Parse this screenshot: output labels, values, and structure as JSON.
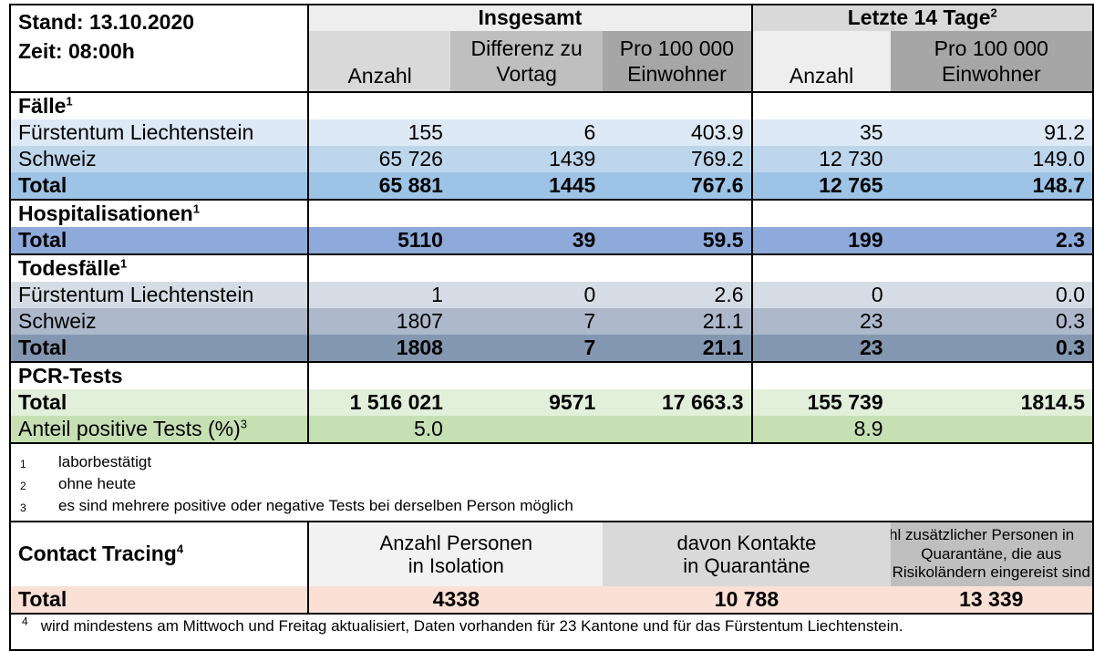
{
  "header": {
    "stand": "Stand: 13.10.2020",
    "zeit": "Zeit: 08:00h",
    "group_total": "Insgesamt",
    "group_14": "Letzte 14 Tage",
    "group_14_sup": "2",
    "cols": [
      "Anzahl",
      "Differenz zu Vortag",
      "Pro 100 000 Einwohner",
      "Anzahl",
      "Pro 100 000 Einwohner"
    ],
    "col_lines": {
      "c2a": "Differenz zu",
      "c2b": "Vortag",
      "c3a": "Pro 100 000",
      "c3b": "Einwohner",
      "c5a": "Pro 100 000",
      "c5b": "Einwohner"
    }
  },
  "sections": {
    "faelle": {
      "title": "Fälle",
      "sup": "1",
      "rows": [
        {
          "label": "Fürstentum Liechtenstein",
          "values": [
            "155",
            "6",
            "403.9",
            "35",
            "91.2"
          ]
        },
        {
          "label": "Schweiz",
          "values": [
            "65 726",
            "1439",
            "769.2",
            "12 730",
            "149.0"
          ]
        },
        {
          "label": "Total",
          "values": [
            "65 881",
            "1445",
            "767.6",
            "12 765",
            "148.7"
          ]
        }
      ]
    },
    "hosp": {
      "title": "Hospitalisationen",
      "sup": "1",
      "rows": [
        {
          "label": "Total",
          "values": [
            "5110",
            "39",
            "59.5",
            "199",
            "2.3"
          ]
        }
      ]
    },
    "tod": {
      "title": "Todesfälle",
      "sup": "1",
      "rows": [
        {
          "label": "Fürstentum Liechtenstein",
          "values": [
            "1",
            "0",
            "2.6",
            "0",
            "0.0"
          ]
        },
        {
          "label": "Schweiz",
          "values": [
            "1807",
            "7",
            "21.1",
            "23",
            "0.3"
          ]
        },
        {
          "label": "Total",
          "values": [
            "1808",
            "7",
            "21.1",
            "23",
            "0.3"
          ]
        }
      ]
    },
    "pcr": {
      "title": "PCR-Tests",
      "total": {
        "label": "Total",
        "values": [
          "1 516 021",
          "9571",
          "17 663.3",
          "155 739",
          "1814.5"
        ]
      },
      "anteil": {
        "label": "Anteil positive Tests (%)",
        "sup": "3",
        "value_total": "5.0",
        "value_14": "8.9"
      }
    }
  },
  "footnotes": [
    {
      "num": "1",
      "text": "laborbestätigt"
    },
    {
      "num": "2",
      "text": "ohne heute"
    },
    {
      "num": "3",
      "text": "es sind mehrere positive oder negative Tests bei derselben Person möglich"
    }
  ],
  "contact_tracing": {
    "title": "Contact Tracing",
    "sup": "4",
    "col1_a": "Anzahl Personen",
    "col1_b": "in Isolation",
    "col2_a": "davon Kontakte",
    "col2_b": "in Quarantäne",
    "col3_a": "Anzahl zusätzlicher Personen in",
    "col3_b": "Quarantäne, die aus",
    "col3_c": "Risikoländern eingereist sind",
    "total_label": "Total",
    "values": [
      "4338",
      "10 788",
      "13 339"
    ],
    "footnote_num": "4",
    "footnote": "wird mindestens am Mittwoch und Freitag aktualisiert, Daten vorhanden für 23 Kantone und für das Fürstentum Liechtenstein."
  },
  "colors": {
    "faelle_1": "#dde9f5",
    "faelle_2": "#bed6ec",
    "faelle_total": "#9dc3e6",
    "hosp_total": "#8eaadb",
    "tod_1": "#d6dce5",
    "tod_2": "#adb9ca",
    "tod_total": "#8497b0",
    "pcr_total": "#e2efda",
    "pcr_anteil": "#c6e0b4",
    "ct_total": "#fbe0d5"
  }
}
